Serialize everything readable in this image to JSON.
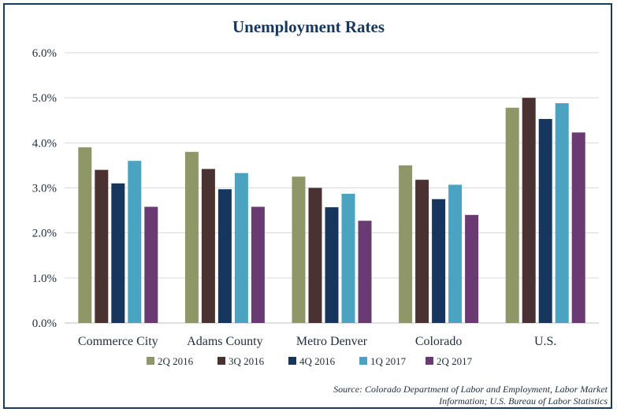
{
  "chart_data": {
    "type": "bar",
    "title": "Unemployment Rates",
    "xlabel": "",
    "ylabel": "",
    "ylim": [
      0,
      6
    ],
    "yticks": [
      0,
      1,
      2,
      3,
      4,
      5,
      6
    ],
    "ytick_labels": [
      "0.0%",
      "1.0%",
      "2.0%",
      "3.0%",
      "4.0%",
      "5.0%",
      "6.0%"
    ],
    "grid": true,
    "legend_position": "bottom",
    "categories": [
      "Commerce City",
      "Adams County",
      "Metro Denver",
      "Colorado",
      "U.S."
    ],
    "series": [
      {
        "name": "2Q 2016",
        "color": "#8f9668",
        "values": [
          3.9,
          3.8,
          3.25,
          3.5,
          4.78
        ]
      },
      {
        "name": "3Q 2016",
        "color": "#4a3232",
        "values": [
          3.4,
          3.42,
          3.0,
          3.18,
          5.0
        ]
      },
      {
        "name": "4Q 2016",
        "color": "#17365d",
        "values": [
          3.1,
          2.97,
          2.57,
          2.75,
          4.53
        ]
      },
      {
        "name": "1Q 2017",
        "color": "#4aa3c0",
        "values": [
          3.6,
          3.33,
          2.87,
          3.07,
          4.88
        ]
      },
      {
        "name": "2Q 2017",
        "color": "#6a3a72",
        "values": [
          2.58,
          2.58,
          2.27,
          2.4,
          4.23
        ]
      }
    ]
  },
  "source_line1": "Source: Colorado Department of Labor and Employment, Labor Market",
  "source_line2": "Information; U.S. Bureau of Labor Statistics"
}
